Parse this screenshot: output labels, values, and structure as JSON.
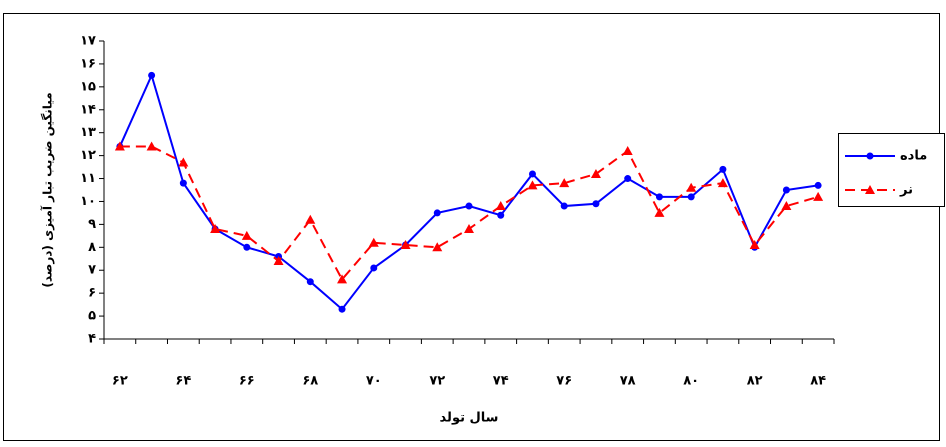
{
  "chart_data": {
    "type": "line",
    "x_label": "سال تولد",
    "y_label": "میانگین ضریب تبار آمیزی (درصد)",
    "categories": [
      "۶۲",
      null,
      "۶۴",
      null,
      "۶۶",
      null,
      "۶۸",
      null,
      "۷۰",
      null,
      "۷۲",
      null,
      "۷۴",
      null,
      "۷۶",
      null,
      "۷۸",
      null,
      "۸۰",
      null,
      "۸۲",
      null,
      "۸۴"
    ],
    "series": [
      {
        "name": "ماده",
        "color": "#0000ff",
        "marker": "circle",
        "dashed": false,
        "values": [
          12.4,
          15.5,
          10.8,
          8.8,
          8.0,
          7.6,
          6.5,
          5.3,
          7.1,
          8.1,
          9.5,
          9.8,
          9.4,
          11.2,
          9.8,
          9.9,
          11.0,
          10.2,
          10.2,
          11.4,
          8.0,
          10.5,
          10.7
        ]
      },
      {
        "name": "نر",
        "color": "#ff0000",
        "marker": "triangle",
        "dashed": true,
        "values": [
          12.4,
          12.4,
          11.7,
          8.8,
          8.5,
          7.4,
          9.2,
          6.6,
          8.2,
          8.1,
          8.0,
          8.8,
          9.8,
          10.7,
          10.8,
          11.2,
          12.2,
          9.5,
          10.6,
          10.8,
          8.1,
          9.8,
          10.2
        ]
      }
    ],
    "ylim": [
      4,
      17
    ],
    "yticks": [
      {
        "value": 4,
        "label": "۴"
      },
      {
        "value": 5,
        "label": "۵"
      },
      {
        "value": 6,
        "label": "۶"
      },
      {
        "value": 7,
        "label": "۷"
      },
      {
        "value": 8,
        "label": "۸"
      },
      {
        "value": 9,
        "label": "۹"
      },
      {
        "value": 10,
        "label": "۱۰"
      },
      {
        "value": 11,
        "label": "۱۱"
      },
      {
        "value": 12,
        "label": "۱۲"
      },
      {
        "value": 13,
        "label": "۱۳"
      },
      {
        "value": 14,
        "label": "۱۴"
      },
      {
        "value": 15,
        "label": "۱۵"
      },
      {
        "value": 16,
        "label": "۱۶"
      },
      {
        "value": 17,
        "label": "۱۷"
      }
    ],
    "grid": false
  }
}
